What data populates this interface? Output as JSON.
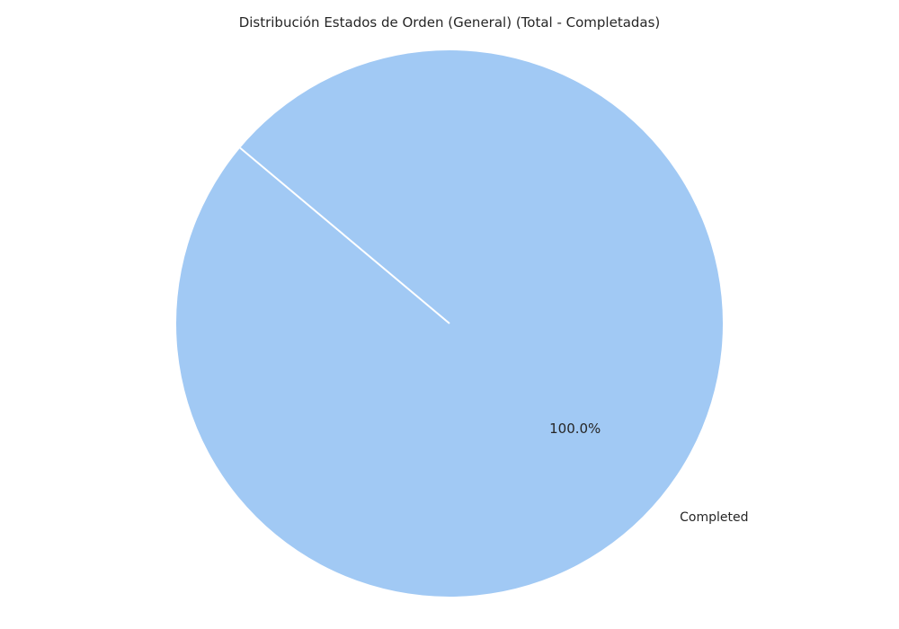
{
  "chart_data": {
    "type": "pie",
    "title": "Distribución Estados de Orden (General) (Total - Completadas)",
    "slices": [
      {
        "label": "Completed",
        "value": 100.0,
        "percent_label": "100.0%",
        "color": "#a1c9f4"
      }
    ],
    "start_angle_deg": 140,
    "edge_color": "#ffffff"
  }
}
